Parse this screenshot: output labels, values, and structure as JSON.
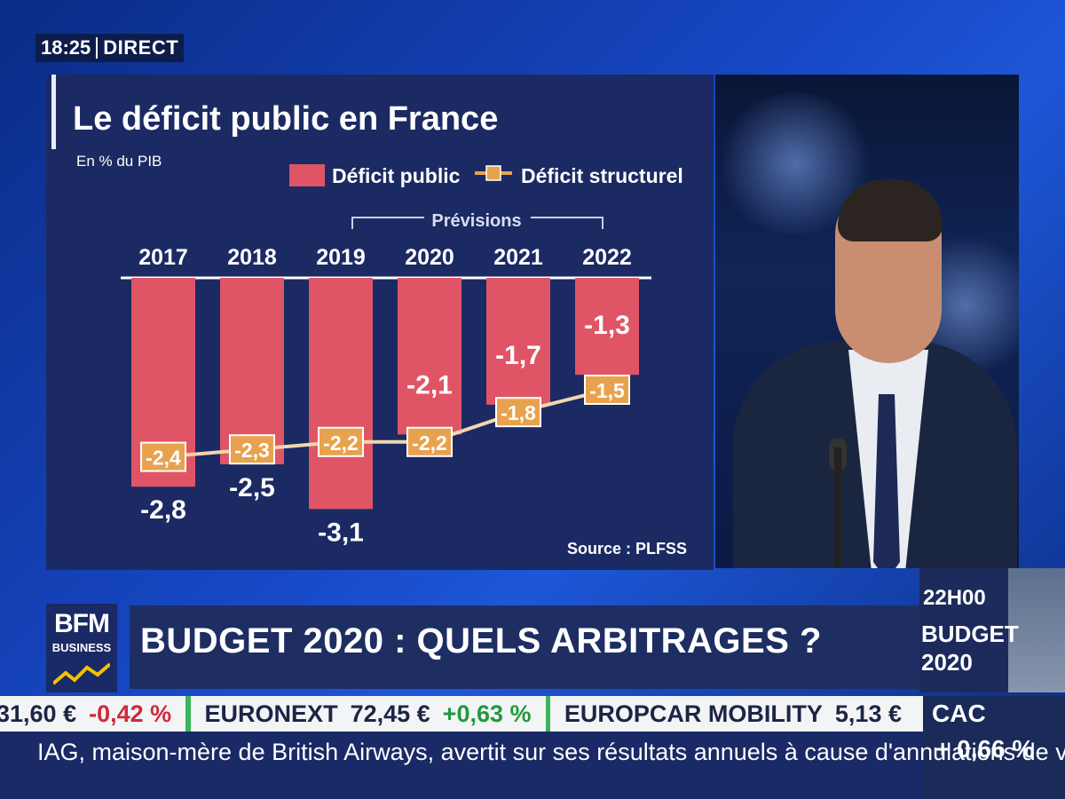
{
  "clock": {
    "time": "18:25",
    "label": "DIRECT"
  },
  "chart_data": {
    "type": "bar",
    "title": "Le déficit public en France",
    "subtitle": "En % du PIB",
    "categories": [
      "2017",
      "2018",
      "2019",
      "2020",
      "2021",
      "2022"
    ],
    "forecast_label": "Prévisions",
    "forecast_categories": [
      "2019",
      "2020",
      "2021",
      "2022"
    ],
    "series": [
      {
        "name": "Déficit public",
        "kind": "bar",
        "color": "#e05566",
        "values": [
          -2.8,
          -2.5,
          -3.1,
          -2.1,
          -1.7,
          -1.3
        ],
        "labels": [
          "-2,8",
          "-2,5",
          "-3,1",
          "-2,1",
          "-1,7",
          "-1,3"
        ]
      },
      {
        "name": "Déficit structurel",
        "kind": "line",
        "color": "#e8a24e",
        "values": [
          -2.4,
          -2.3,
          -2.2,
          -2.2,
          -1.8,
          -1.5
        ],
        "labels": [
          "-2,4",
          "-2,3",
          "-2,2",
          "-2,2",
          "-1,8",
          "-1,5"
        ]
      }
    ],
    "ylim": [
      -3.4,
      0
    ],
    "source": "Source : PLFSS"
  },
  "brand": {
    "logo": "BFM",
    "sub": "BUSINESS"
  },
  "headline": "BUDGET 2020 : QUELS ARBITRAGES ?",
  "upnext": {
    "time": "22H00",
    "title": "BUDGET 2020"
  },
  "ticker": [
    {
      "name": "",
      "price": "31,60 €",
      "change": "-0,42 %",
      "dir": "down"
    },
    {
      "name": "EURONEXT",
      "price": "72,45 €",
      "change": "+0,63 %",
      "dir": "up"
    },
    {
      "name": "EUROPCAR MOBILITY",
      "price": "5,13 €",
      "change": "",
      "dir": "none"
    }
  ],
  "index": {
    "name": "CAC",
    "value": "+ 0,66 %"
  },
  "news": "IAG, maison-mère de British Airways, avertit sur ses résultats annuels à cause d'annulations de vols.",
  "colors": {
    "accent": "#1d57d8",
    "bar": "#e05566",
    "line": "#e8a24e"
  }
}
